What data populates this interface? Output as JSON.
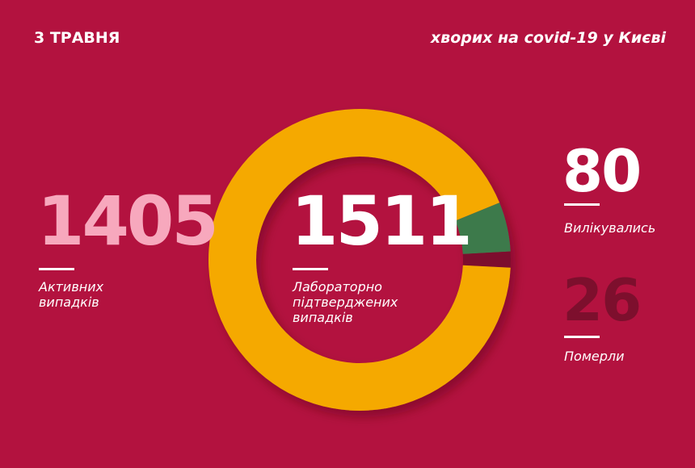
{
  "chart_data": {
    "type": "donut",
    "date": "3 ТРАВНЯ",
    "title": "хворих на covid-19 у Києві",
    "total": 1511,
    "total_label": "Лабораторно підтверджених випадків",
    "categories": [
      "Активних випадків",
      "Вилікувались",
      "Померли"
    ],
    "values": [
      1405,
      80,
      26
    ],
    "colors": [
      "#f5a902",
      "#3e7a4c",
      "#7d0f2d"
    ],
    "number_colors": [
      "#f7a8bd",
      "#ffffff",
      "#7d0f2d"
    ]
  }
}
